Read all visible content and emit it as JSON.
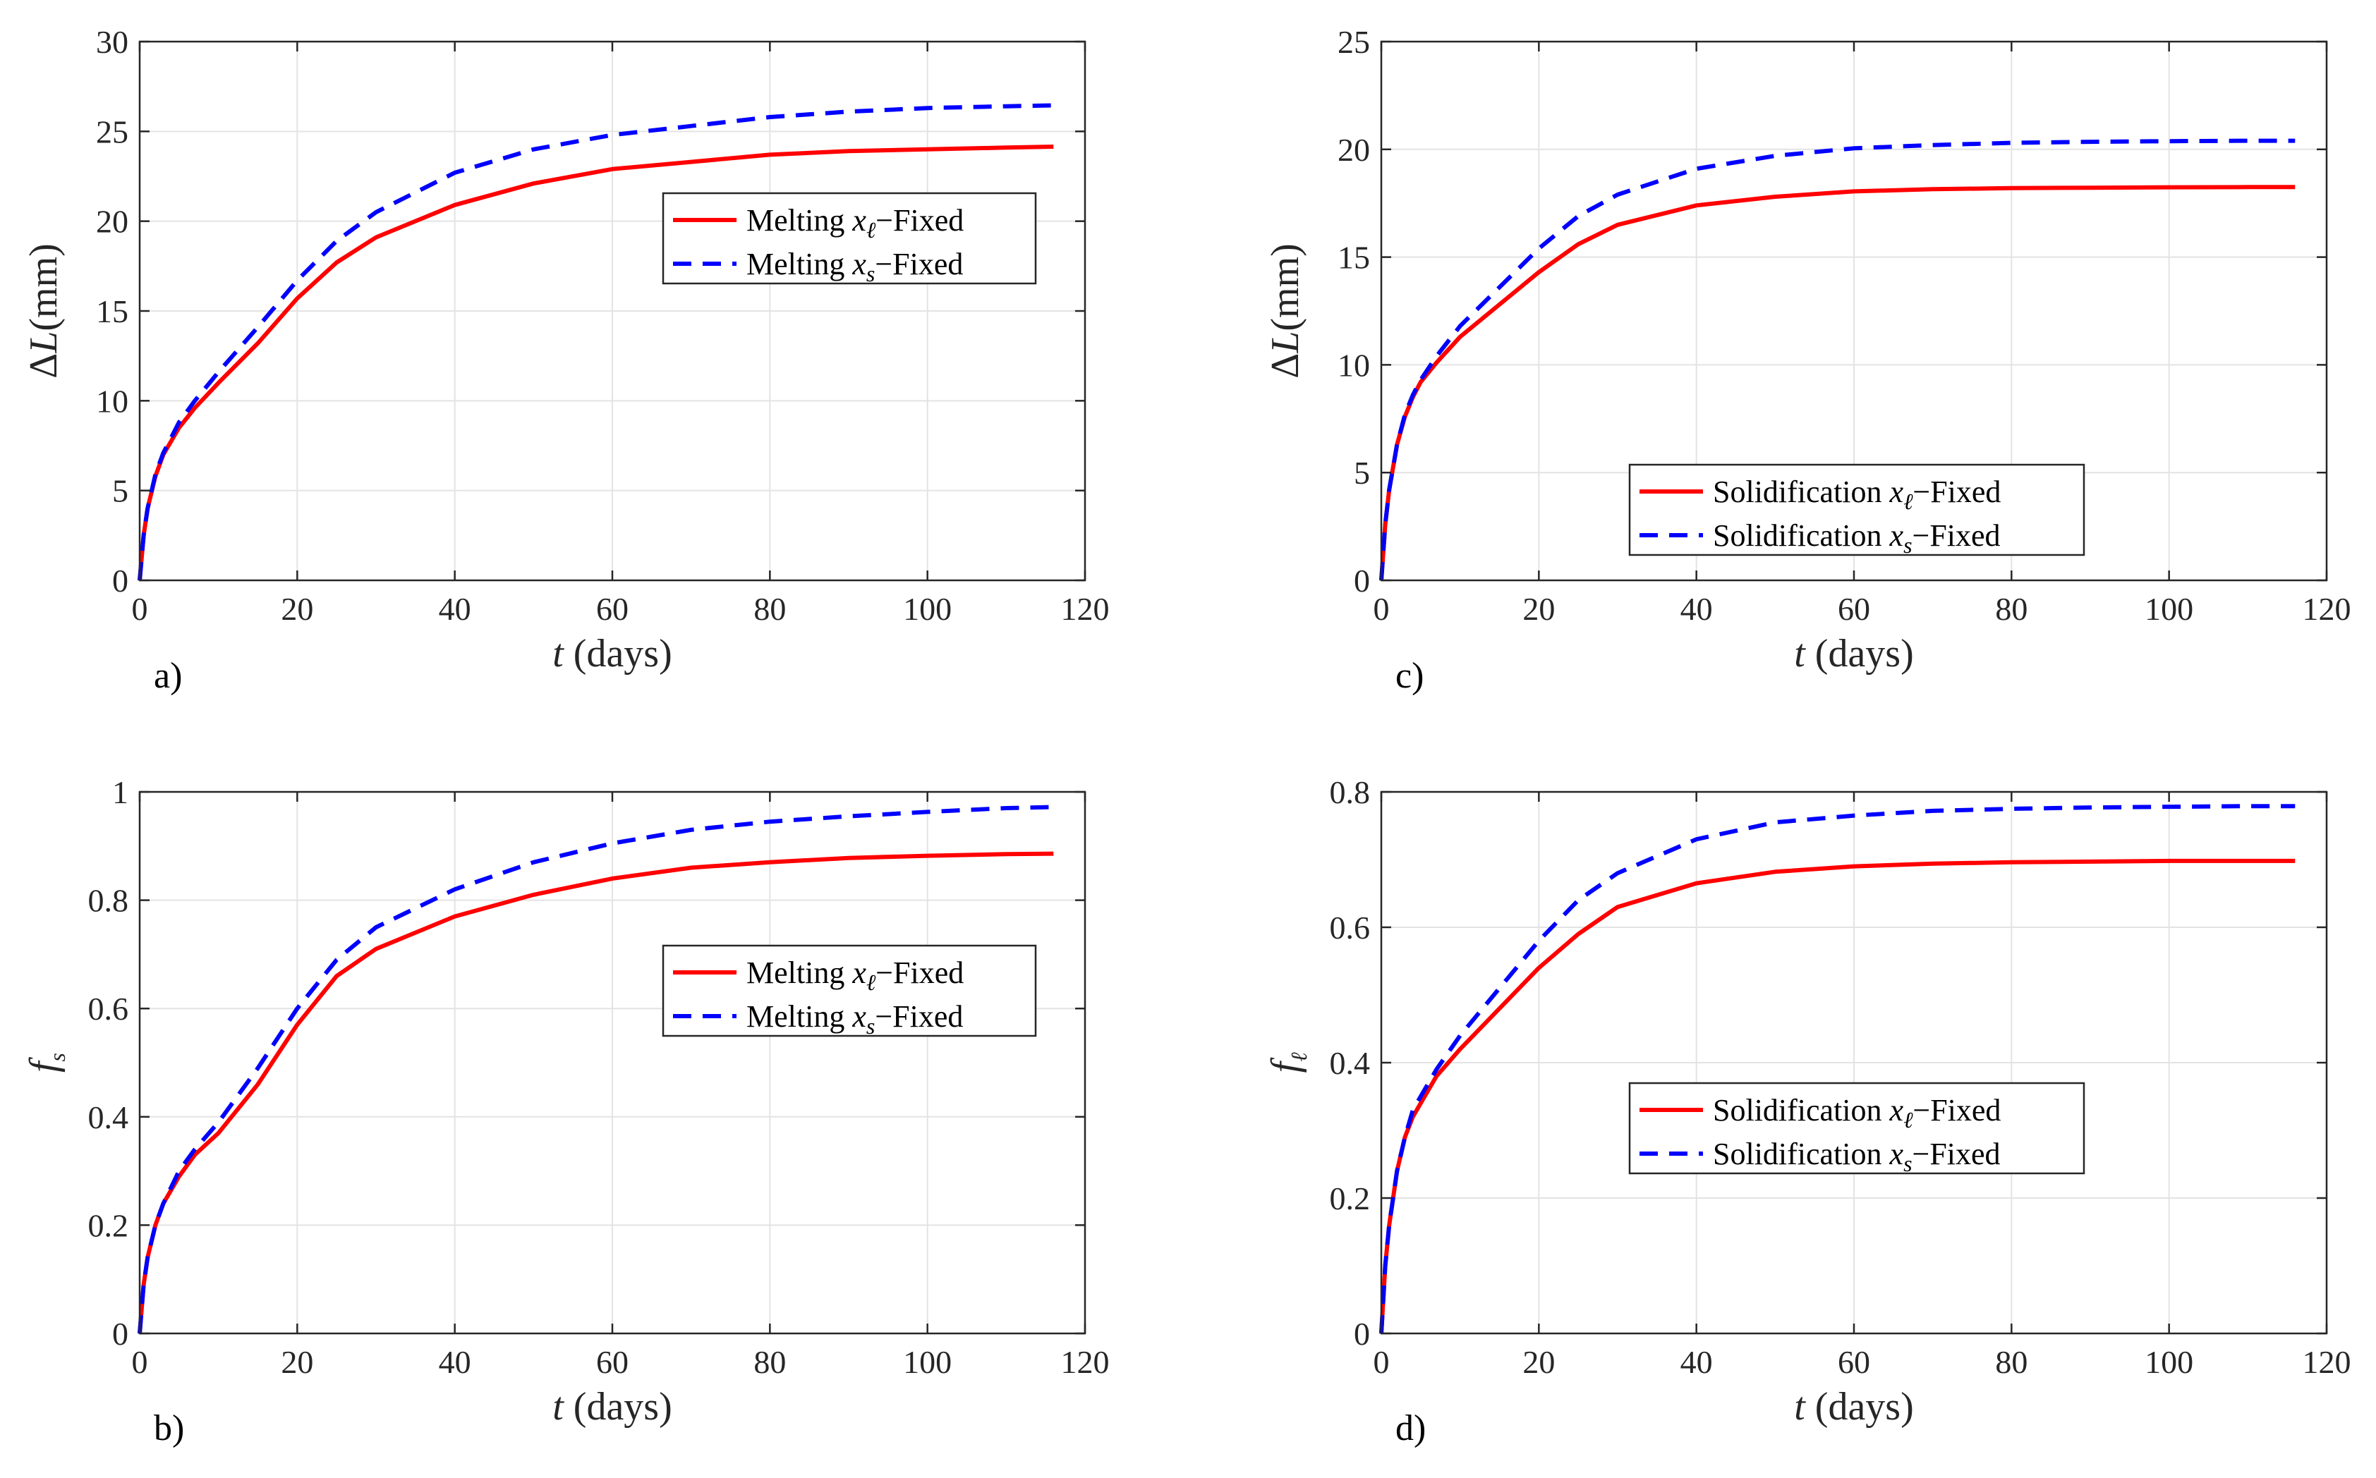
{
  "chart_data": [
    {
      "type": "line",
      "panel_label": "a)",
      "title": "",
      "xlabel": {
        "var": "t",
        "unit": "(days)"
      },
      "ylabel": {
        "main": "ΔL(mm)",
        "var": "",
        "sub": ""
      },
      "xlim": [
        0,
        120
      ],
      "ylim": [
        0,
        30
      ],
      "xticks": [
        0,
        20,
        40,
        60,
        80,
        100,
        120
      ],
      "yticks": [
        0,
        5,
        10,
        15,
        20,
        25,
        30
      ],
      "grid": true,
      "legend_placement": "center-right",
      "series": [
        {
          "name": "Melting x_ℓ−Fixed",
          "label_pre": "Melting ",
          "label_var": "x",
          "label_sub": "ℓ",
          "label_post": "−Fixed",
          "color": "#ff0000",
          "style": "solid",
          "x": [
            0,
            0.5,
            1,
            2,
            3,
            5,
            7,
            10,
            15,
            20,
            25,
            30,
            40,
            50,
            60,
            70,
            80,
            90,
            100,
            110,
            116
          ],
          "y": [
            0,
            2.5,
            4,
            5.8,
            7,
            8.5,
            9.6,
            11,
            13.2,
            15.7,
            17.7,
            19.1,
            20.9,
            22.1,
            22.9,
            23.3,
            23.7,
            23.9,
            24.0,
            24.1,
            24.15
          ]
        },
        {
          "name": "Melting x_s−Fixed",
          "label_pre": "Melting ",
          "label_var": "x",
          "label_sub": "s",
          "label_post": "−Fixed",
          "color": "#0000ff",
          "style": "dashed",
          "x": [
            0,
            0.5,
            1,
            2,
            3,
            5,
            7,
            10,
            15,
            20,
            25,
            30,
            40,
            50,
            60,
            70,
            80,
            90,
            100,
            110,
            116
          ],
          "y": [
            0,
            2.5,
            4,
            5.9,
            7.1,
            8.8,
            10.0,
            11.6,
            14.1,
            16.7,
            18.9,
            20.5,
            22.7,
            24.0,
            24.8,
            25.3,
            25.8,
            26.1,
            26.3,
            26.4,
            26.45
          ]
        }
      ]
    },
    {
      "type": "line",
      "panel_label": "b)",
      "title": "",
      "xlabel": {
        "var": "t",
        "unit": "(days)"
      },
      "ylabel": {
        "main": "",
        "var": "f",
        "sub": "s"
      },
      "xlim": [
        0,
        120
      ],
      "ylim": [
        0,
        1
      ],
      "xticks": [
        0,
        20,
        40,
        60,
        80,
        100,
        120
      ],
      "yticks": [
        0,
        0.2,
        0.4,
        0.6,
        0.8,
        1
      ],
      "grid": true,
      "legend_placement": "center-right",
      "series": [
        {
          "name": "Melting x_ℓ−Fixed",
          "label_pre": "Melting ",
          "label_var": "x",
          "label_sub": "ℓ",
          "label_post": "−Fixed",
          "color": "#ff0000",
          "style": "solid",
          "x": [
            0,
            0.5,
            1,
            2,
            3,
            5,
            7,
            10,
            15,
            20,
            25,
            30,
            40,
            50,
            60,
            70,
            80,
            90,
            100,
            110,
            116
          ],
          "y": [
            0,
            0.09,
            0.14,
            0.2,
            0.24,
            0.29,
            0.33,
            0.37,
            0.46,
            0.57,
            0.66,
            0.71,
            0.77,
            0.81,
            0.84,
            0.86,
            0.87,
            0.878,
            0.882,
            0.885,
            0.886
          ]
        },
        {
          "name": "Melting x_s−Fixed",
          "label_pre": "Melting ",
          "label_var": "x",
          "label_sub": "s",
          "label_post": "−Fixed",
          "color": "#0000ff",
          "style": "dashed",
          "x": [
            0,
            0.5,
            1,
            2,
            3,
            5,
            7,
            10,
            15,
            20,
            25,
            30,
            40,
            50,
            60,
            70,
            80,
            90,
            100,
            110,
            116
          ],
          "y": [
            0,
            0.09,
            0.14,
            0.2,
            0.24,
            0.3,
            0.34,
            0.39,
            0.49,
            0.6,
            0.69,
            0.75,
            0.82,
            0.87,
            0.905,
            0.93,
            0.945,
            0.955,
            0.963,
            0.97,
            0.972
          ]
        }
      ]
    },
    {
      "type": "line",
      "panel_label": "c)",
      "title": "",
      "xlabel": {
        "var": "t",
        "unit": "(days)"
      },
      "ylabel": {
        "main": "ΔL(mm)",
        "var": "",
        "sub": ""
      },
      "xlim": [
        0,
        120
      ],
      "ylim": [
        0,
        25
      ],
      "xticks": [
        0,
        20,
        40,
        60,
        80,
        100,
        120
      ],
      "yticks": [
        0,
        5,
        10,
        15,
        20,
        25
      ],
      "grid": true,
      "legend_placement": "bottom-right",
      "series": [
        {
          "name": "Solidification x_ℓ−Fixed",
          "label_pre": "Solidification ",
          "label_var": "x",
          "label_sub": "ℓ",
          "label_post": "−Fixed",
          "color": "#ff0000",
          "style": "solid",
          "x": [
            0,
            0.5,
            1,
            2,
            3,
            4,
            5,
            7,
            10,
            15,
            20,
            25,
            30,
            40,
            50,
            60,
            70,
            80,
            90,
            100,
            110,
            116
          ],
          "y": [
            0,
            2.6,
            4.2,
            6.3,
            7.6,
            8.5,
            9.2,
            10.1,
            11.3,
            12.8,
            14.3,
            15.6,
            16.5,
            17.4,
            17.8,
            18.05,
            18.15,
            18.2,
            18.22,
            18.24,
            18.25,
            18.25
          ]
        },
        {
          "name": "Solidification x_s−Fixed",
          "label_pre": "Solidification ",
          "label_var": "x",
          "label_sub": "s",
          "label_post": "−Fixed",
          "color": "#0000ff",
          "style": "dashed",
          "x": [
            0,
            0.5,
            1,
            2,
            3,
            4,
            5,
            7,
            10,
            15,
            20,
            25,
            30,
            40,
            50,
            60,
            70,
            80,
            90,
            100,
            110,
            116
          ],
          "y": [
            0,
            2.6,
            4.2,
            6.3,
            7.7,
            8.6,
            9.3,
            10.4,
            11.8,
            13.6,
            15.4,
            16.9,
            17.9,
            19.1,
            19.7,
            20.05,
            20.2,
            20.3,
            20.35,
            20.38,
            20.4,
            20.4
          ]
        }
      ]
    },
    {
      "type": "line",
      "panel_label": "d)",
      "title": "",
      "xlabel": {
        "var": "t",
        "unit": "(days)"
      },
      "ylabel": {
        "main": "",
        "var": "f",
        "sub": "ℓ"
      },
      "xlim": [
        0,
        120
      ],
      "ylim": [
        0,
        0.8
      ],
      "xticks": [
        0,
        20,
        40,
        60,
        80,
        100,
        120
      ],
      "yticks": [
        0,
        0.2,
        0.4,
        0.6,
        0.8
      ],
      "grid": true,
      "legend_placement": "center-right",
      "series": [
        {
          "name": "Solidification x_ℓ−Fixed",
          "label_pre": "Solidification ",
          "label_var": "x",
          "label_sub": "ℓ",
          "label_post": "−Fixed",
          "color": "#ff0000",
          "style": "solid",
          "x": [
            0,
            0.5,
            1,
            2,
            3,
            4,
            5,
            7,
            10,
            15,
            20,
            25,
            30,
            40,
            50,
            60,
            70,
            80,
            90,
            100,
            110,
            116
          ],
          "y": [
            0,
            0.1,
            0.16,
            0.24,
            0.29,
            0.32,
            0.34,
            0.38,
            0.42,
            0.48,
            0.54,
            0.59,
            0.63,
            0.665,
            0.682,
            0.69,
            0.694,
            0.696,
            0.697,
            0.698,
            0.698,
            0.698
          ]
        },
        {
          "name": "Solidification x_s−Fixed",
          "label_pre": "Solidification ",
          "label_var": "x",
          "label_sub": "s",
          "label_post": "−Fixed",
          "color": "#0000ff",
          "style": "dashed",
          "x": [
            0,
            0.5,
            1,
            2,
            3,
            4,
            5,
            7,
            10,
            15,
            20,
            25,
            30,
            40,
            50,
            60,
            70,
            80,
            90,
            100,
            110,
            116
          ],
          "y": [
            0,
            0.1,
            0.16,
            0.24,
            0.29,
            0.33,
            0.35,
            0.39,
            0.44,
            0.51,
            0.58,
            0.64,
            0.68,
            0.73,
            0.755,
            0.765,
            0.772,
            0.775,
            0.777,
            0.778,
            0.779,
            0.779
          ]
        }
      ]
    }
  ]
}
